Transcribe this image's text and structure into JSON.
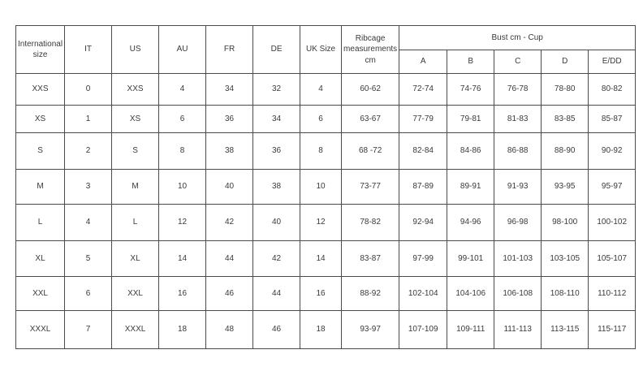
{
  "header": {
    "columns": [
      "International size",
      "IT",
      "US",
      "AU",
      "FR",
      "DE",
      "UK Size",
      "Ribcage measurements cm"
    ],
    "bust_group": "Bust cm - Cup",
    "cups": [
      "A",
      "B",
      "C",
      "D",
      "E/DD"
    ]
  },
  "rows": [
    [
      "XXS",
      "0",
      "XXS",
      "4",
      "34",
      "32",
      "4",
      "60-62",
      "72-74",
      "74-76",
      "76-78",
      "78-80",
      "80-82"
    ],
    [
      "XS",
      "1",
      "XS",
      "6",
      "36",
      "34",
      "6",
      "63-67",
      "77-79",
      "79-81",
      "81-83",
      "83-85",
      "85-87"
    ],
    [
      "S",
      "2",
      "S",
      "8",
      "38",
      "36",
      "8",
      "68 -72",
      "82-84",
      "84-86",
      "86-88",
      "88-90",
      "90-92"
    ],
    [
      "M",
      "3",
      "M",
      "10",
      "40",
      "38",
      "10",
      "73-77",
      "87-89",
      "89-91",
      "91-93",
      "93-95",
      "95-97"
    ],
    [
      "L",
      "4",
      "L",
      "12",
      "42",
      "40",
      "12",
      "78-82",
      "92-94",
      "94-96",
      "96-98",
      "98-100",
      "100-102"
    ],
    [
      "XL",
      "5",
      "XL",
      "14",
      "44",
      "42",
      "14",
      "83-87",
      "97-99",
      "99-101",
      "101-103",
      "103-105",
      "105-107"
    ],
    [
      "XXL",
      "6",
      "XXL",
      "16",
      "46",
      "44",
      "16",
      "88-92",
      "102-104",
      "104-106",
      "106-108",
      "108-110",
      "110-112"
    ],
    [
      "XXXL",
      "7",
      "XXXL",
      "18",
      "48",
      "46",
      "18",
      "93-97",
      "107-109",
      "109-111",
      "111-113",
      "113-115",
      "115-117"
    ]
  ],
  "style": {
    "border_color": "#4b4b4b",
    "text_color": "#3a3a3a",
    "background": "#ffffff"
  }
}
